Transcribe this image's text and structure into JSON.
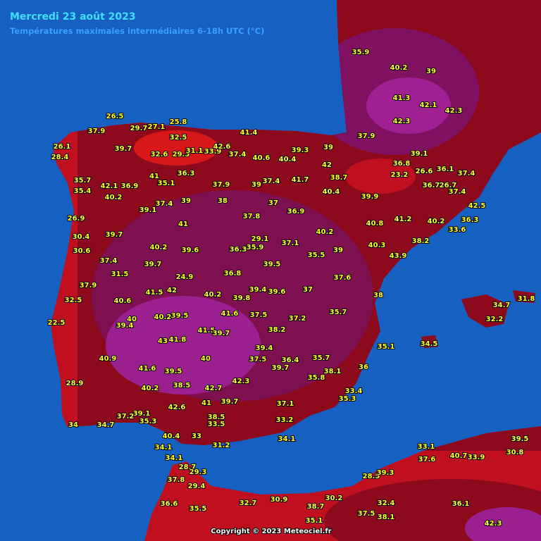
{
  "title": "Mercredi 23 août 2023",
  "subtitle": "Températures maximales intermédiaires 6-18h UTC (°C)",
  "copyright": "Copyright © 2023 Meteociel.fr",
  "stations": [
    26.5,
    29.7,
    27.1,
    25.8,
    32.5,
    26.1,
    28.4,
    37.9,
    39.7,
    32.6,
    29.5,
    31.1,
    33.9,
    42.6,
    37.4,
    41.4,
    40.6,
    40.4,
    39.3,
    39,
    42,
    35.7,
    35.4,
    42.1,
    36.9,
    41,
    36.3,
    35.1,
    37.9,
    39,
    37.4,
    41.7,
    38.7,
    40.4,
    39.9,
    40.2,
    26.9,
    39.1,
    37.4,
    39,
    38,
    37,
    36.9,
    41,
    37.8,
    30.4,
    39.7,
    40.2,
    39.6,
    36.3,
    35.9,
    29.1,
    37.1,
    40.2,
    30.6,
    37.4,
    39.7,
    35.5,
    39,
    31.5,
    24.9,
    36.8,
    39.5,
    37.9,
    41.5,
    42,
    40.2,
    39.8,
    39.4,
    39.6,
    37,
    37.6,
    32.5,
    40.6,
    41.6,
    37.5,
    35.7,
    22.5,
    40.2,
    39.5,
    40,
    39.4,
    41.5,
    39.7,
    38.2,
    37.2,
    41.8,
    43,
    40.9,
    40,
    39.4,
    37.5,
    36.4,
    35.7,
    35.1,
    34.5,
    41.6,
    39.5,
    39.7,
    38.1,
    36,
    28.9,
    42.3,
    38.5,
    35.8,
    42.7,
    40.2,
    33.4,
    35.3,
    42.6,
    41,
    39.7,
    37.1,
    39.1,
    37.2,
    35.3,
    33.2,
    34,
    34.7,
    38.5,
    33.5,
    40.4,
    33,
    34.1,
    31.2,
    34.1,
    34.1,
    28.7,
    29.3,
    37.8,
    29.4,
    36.6,
    35.5,
    32.7,
    30.9,
    38.7,
    35.1,
    30.2,
    37.5,
    38.1,
    32.4,
    28.5,
    39.3,
    36.1,
    42.3,
    33.1,
    37.6,
    40.7,
    33.9,
    39.5,
    30.8,
    31.8,
    34.7,
    32.2,
    35.9,
    40.2,
    39,
    41.3,
    42.3,
    42.1,
    42.3,
    37.9,
    39.1,
    36.8,
    23.2,
    26.6,
    36.1,
    37.4,
    36.7,
    26.7,
    37.4,
    42.5,
    40.2,
    33.6,
    36.3,
    38.2,
    43.9,
    41.2,
    40.8,
    40.3,
    38
  ]
}
